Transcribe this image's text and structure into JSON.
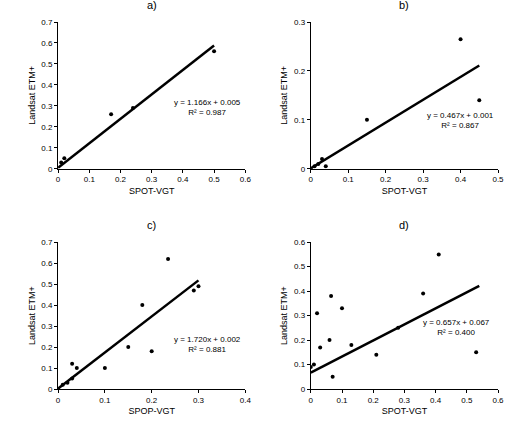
{
  "chart_data": [
    {
      "type": "scatter",
      "title": "a)",
      "xlabel": "SPOT-VGT",
      "ylabel": "Landsat ETM+",
      "x": [
        0.01,
        0.02,
        0.17,
        0.24,
        0.5
      ],
      "values": [
        0.03,
        0.05,
        0.26,
        0.29,
        0.56
      ],
      "xlim": [
        0,
        0.6
      ],
      "xticks": [
        0,
        0.1,
        0.2,
        0.3,
        0.4,
        0.5,
        0.6
      ],
      "ylim": [
        0,
        0.7
      ],
      "yticks": [
        0,
        0.1,
        0.2,
        0.3,
        0.4,
        0.5,
        0.6,
        0.7
      ],
      "trendline": {
        "slope": 1.166,
        "intercept": 0.005,
        "x": [
          0,
          0.5
        ]
      },
      "annotations": [
        "y = 1.166x + 0.005",
        "R² = 0.987"
      ],
      "color": "#000000",
      "marker": "circle",
      "grid": false
    },
    {
      "type": "scatter",
      "title": "b)",
      "xlabel": "SPOT-VGT",
      "ylabel": "Landsat ETM+",
      "x": [
        0.0,
        0.01,
        0.02,
        0.03,
        0.04,
        0.15,
        0.4,
        0.45
      ],
      "values": [
        0.0,
        0.005,
        0.01,
        0.02,
        0.005,
        0.1,
        0.265,
        0.14
      ],
      "xlim": [
        0,
        0.5
      ],
      "xticks": [
        0,
        0.1,
        0.2,
        0.3,
        0.4,
        0.5
      ],
      "ylim": [
        0,
        0.3
      ],
      "yticks": [
        0,
        0.1,
        0.2,
        0.3
      ],
      "trendline": {
        "slope": 0.467,
        "intercept": 0.001,
        "x": [
          0,
          0.45
        ]
      },
      "annotations": [
        "y = 0.467x + 0.001",
        "R² = 0.867"
      ],
      "color": "#000000",
      "marker": "circle",
      "grid": false
    },
    {
      "type": "scatter",
      "title": "c)",
      "xlabel": "SPOP-VGT",
      "ylabel": "Landsat ETM+",
      "x": [
        0.0,
        0.01,
        0.02,
        0.03,
        0.03,
        0.04,
        0.1,
        0.15,
        0.18,
        0.2,
        0.235,
        0.29,
        0.3
      ],
      "values": [
        0.0,
        0.02,
        0.03,
        0.05,
        0.12,
        0.1,
        0.1,
        0.2,
        0.4,
        0.18,
        0.62,
        0.47,
        0.49
      ],
      "xlim": [
        0,
        0.4
      ],
      "xticks": [
        0,
        0.1,
        0.2,
        0.3,
        0.4
      ],
      "ylim": [
        0,
        0.7
      ],
      "yticks": [
        0,
        0.1,
        0.2,
        0.3,
        0.4,
        0.5,
        0.6,
        0.7
      ],
      "trendline": {
        "slope": 1.72,
        "intercept": 0.002,
        "x": [
          0,
          0.3
        ]
      },
      "annotations": [
        "y = 1.720x + 0.002",
        "R² = 0.881"
      ],
      "color": "#000000",
      "marker": "circle",
      "grid": false
    },
    {
      "type": "scatter",
      "title": "d)",
      "xlabel": "SPOT-VGT",
      "ylabel": "Landsat ETM+",
      "x": [
        0.0,
        0.01,
        0.02,
        0.03,
        0.06,
        0.065,
        0.07,
        0.1,
        0.13,
        0.21,
        0.28,
        0.36,
        0.41,
        0.53
      ],
      "values": [
        0.09,
        0.1,
        0.31,
        0.17,
        0.2,
        0.38,
        0.05,
        0.33,
        0.18,
        0.14,
        0.25,
        0.39,
        0.55,
        0.15
      ],
      "xlim": [
        0,
        0.6
      ],
      "xticks": [
        0,
        0.1,
        0.2,
        0.3,
        0.4,
        0.5,
        0.6
      ],
      "ylim": [
        0,
        0.6
      ],
      "yticks": [
        0,
        0.1,
        0.2,
        0.3,
        0.4,
        0.5,
        0.6
      ],
      "trendline": {
        "slope": 0.657,
        "intercept": 0.067,
        "x": [
          0,
          0.54
        ]
      },
      "annotations": [
        "y = 0.657x + 0.067",
        "R² = 0.400"
      ],
      "color": "#000000",
      "marker": "circle",
      "grid": false
    }
  ]
}
